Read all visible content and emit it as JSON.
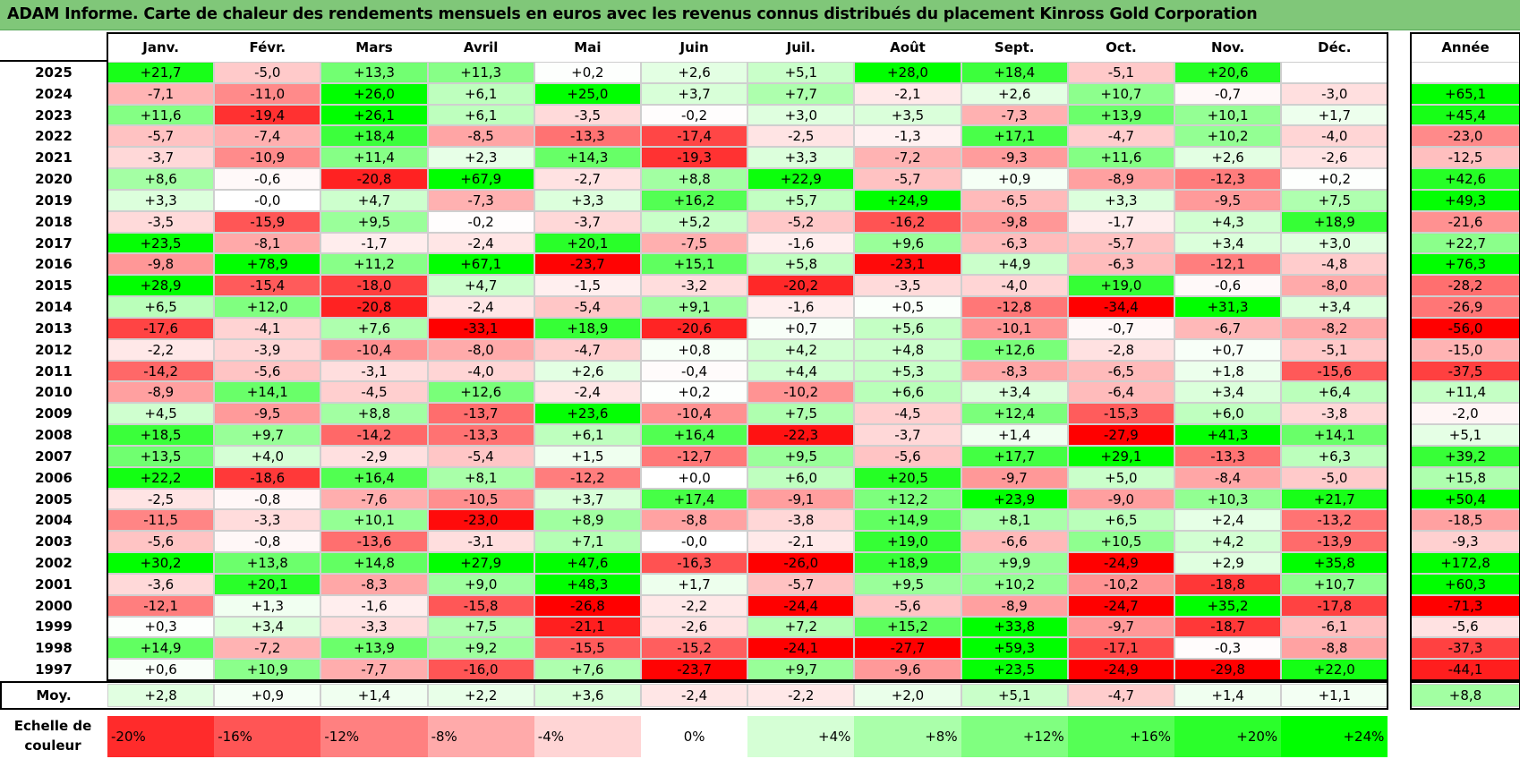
{
  "title": "ADAM Informe. Carte de chaleur des rendements mensuels en euros avec les revenus connus distribués du placement Kinross Gold Corporation",
  "colors": {
    "title_bar": "#80c779",
    "negative": "#ff0000",
    "neutral": "#ffffff",
    "positive": "#00ff00"
  },
  "chart_data": {
    "type": "heatmap",
    "title": "ADAM Informe. Carte de chaleur des rendements mensuels en euros avec les revenus connus distribués du placement Kinross Gold Corporation",
    "months": [
      "Janv.",
      "Févr.",
      "Mars",
      "Avril",
      "Mai",
      "Juin",
      "Juil.",
      "Août",
      "Sept.",
      "Oct.",
      "Nov.",
      "Déc."
    ],
    "year_header": "Année",
    "rows": [
      {
        "year": "2025",
        "values": [
          "+21,7",
          "-5,0",
          "+13,3",
          "+11,3",
          "+0,2",
          "+2,6",
          "+5,1",
          "+28,0",
          "+18,4",
          "-5,1",
          "+20,6",
          ""
        ],
        "annual": ""
      },
      {
        "year": "2024",
        "values": [
          "-7,1",
          "-11,0",
          "+26,0",
          "+6,1",
          "+25,0",
          "+3,7",
          "+7,7",
          "-2,1",
          "+2,6",
          "+10,7",
          "-0,7",
          "-3,0"
        ],
        "annual": "+65,1"
      },
      {
        "year": "2023",
        "values": [
          "+11,6",
          "-19,4",
          "+26,1",
          "+6,1",
          "-3,5",
          "-0,2",
          "+3,0",
          "+3,5",
          "-7,3",
          "+13,9",
          "+10,1",
          "+1,7"
        ],
        "annual": "+45,4"
      },
      {
        "year": "2022",
        "values": [
          "-5,7",
          "-7,4",
          "+18,4",
          "-8,5",
          "-13,3",
          "-17,4",
          "-2,5",
          "-1,3",
          "+17,1",
          "-4,7",
          "+10,2",
          "-4,0"
        ],
        "annual": "-23,0"
      },
      {
        "year": "2021",
        "values": [
          "-3,7",
          "-10,9",
          "+11,4",
          "+2,3",
          "+14,3",
          "-19,3",
          "+3,3",
          "-7,2",
          "-9,3",
          "+11,6",
          "+2,6",
          "-2,6"
        ],
        "annual": "-12,5"
      },
      {
        "year": "2020",
        "values": [
          "+8,6",
          "-0,6",
          "-20,8",
          "+67,9",
          "-2,7",
          "+8,8",
          "+22,9",
          "-5,7",
          "+0,9",
          "-8,9",
          "-12,3",
          "+0,2"
        ],
        "annual": "+42,6"
      },
      {
        "year": "2019",
        "values": [
          "+3,3",
          "-0,0",
          "+4,7",
          "-7,3",
          "+3,3",
          "+16,2",
          "+5,7",
          "+24,9",
          "-6,5",
          "+3,3",
          "-9,5",
          "+7,5"
        ],
        "annual": "+49,3"
      },
      {
        "year": "2018",
        "values": [
          "-3,5",
          "-15,9",
          "+9,5",
          "-0,2",
          "-3,7",
          "+5,2",
          "-5,2",
          "-16,2",
          "-9,8",
          "-1,7",
          "+4,3",
          "+18,9"
        ],
        "annual": "-21,6"
      },
      {
        "year": "2017",
        "values": [
          "+23,5",
          "-8,1",
          "-1,7",
          "-2,4",
          "+20,1",
          "-7,5",
          "-1,6",
          "+9,6",
          "-6,3",
          "-5,7",
          "+3,4",
          "+3,0"
        ],
        "annual": "+22,7"
      },
      {
        "year": "2016",
        "values": [
          "-9,8",
          "+78,9",
          "+11,2",
          "+67,1",
          "-23,7",
          "+15,1",
          "+5,8",
          "-23,1",
          "+4,9",
          "-6,3",
          "-12,1",
          "-4,8"
        ],
        "annual": "+76,3"
      },
      {
        "year": "2015",
        "values": [
          "+28,9",
          "-15,4",
          "-18,0",
          "+4,7",
          "-1,5",
          "-3,2",
          "-20,2",
          "-3,5",
          "-4,0",
          "+19,0",
          "-0,6",
          "-8,0"
        ],
        "annual": "-28,2"
      },
      {
        "year": "2014",
        "values": [
          "+6,5",
          "+12,0",
          "-20,8",
          "-2,4",
          "-5,4",
          "+9,1",
          "-1,6",
          "+0,5",
          "-12,8",
          "-34,4",
          "+31,3",
          "+3,4"
        ],
        "annual": "-26,9"
      },
      {
        "year": "2013",
        "values": [
          "-17,6",
          "-4,1",
          "+7,6",
          "-33,1",
          "+18,9",
          "-20,6",
          "+0,7",
          "+5,6",
          "-10,1",
          "-0,7",
          "-6,7",
          "-8,2"
        ],
        "annual": "-56,0"
      },
      {
        "year": "2012",
        "values": [
          "-2,2",
          "-3,9",
          "-10,4",
          "-8,0",
          "-4,7",
          "+0,8",
          "+4,2",
          "+4,8",
          "+12,6",
          "-2,8",
          "+0,7",
          "-5,1"
        ],
        "annual": "-15,0"
      },
      {
        "year": "2011",
        "values": [
          "-14,2",
          "-5,6",
          "-3,1",
          "-4,0",
          "+2,6",
          "-0,4",
          "+4,4",
          "+5,3",
          "-8,3",
          "-6,5",
          "+1,8",
          "-15,6"
        ],
        "annual": "-37,5"
      },
      {
        "year": "2010",
        "values": [
          "-8,9",
          "+14,1",
          "-4,5",
          "+12,6",
          "-2,4",
          "+0,2",
          "-10,2",
          "+6,6",
          "+3,4",
          "-6,4",
          "+3,4",
          "+6,4"
        ],
        "annual": "+11,4"
      },
      {
        "year": "2009",
        "values": [
          "+4,5",
          "-9,5",
          "+8,8",
          "-13,7",
          "+23,6",
          "-10,4",
          "+7,5",
          "-4,5",
          "+12,4",
          "-15,3",
          "+6,0",
          "-3,8"
        ],
        "annual": "-2,0"
      },
      {
        "year": "2008",
        "values": [
          "+18,5",
          "+9,7",
          "-14,2",
          "-13,3",
          "+6,1",
          "+16,4",
          "-22,3",
          "-3,7",
          "+1,4",
          "-27,9",
          "+41,3",
          "+14,1"
        ],
        "annual": "+5,1"
      },
      {
        "year": "2007",
        "values": [
          "+13,5",
          "+4,0",
          "-2,9",
          "-5,4",
          "+1,5",
          "-12,7",
          "+9,5",
          "-5,6",
          "+17,7",
          "+29,1",
          "-13,3",
          "+6,3"
        ],
        "annual": "+39,2"
      },
      {
        "year": "2006",
        "values": [
          "+22,2",
          "-18,6",
          "+16,4",
          "+8,1",
          "-12,2",
          "+0,0",
          "+6,0",
          "+20,5",
          "-9,7",
          "+5,0",
          "-8,4",
          "-5,0"
        ],
        "annual": "+15,8"
      },
      {
        "year": "2005",
        "values": [
          "-2,5",
          "-0,8",
          "-7,6",
          "-10,5",
          "+3,7",
          "+17,4",
          "-9,1",
          "+12,2",
          "+23,9",
          "-9,0",
          "+10,3",
          "+21,7"
        ],
        "annual": "+50,4"
      },
      {
        "year": "2004",
        "values": [
          "-11,5",
          "-3,3",
          "+10,1",
          "-23,0",
          "+8,9",
          "-8,8",
          "-3,8",
          "+14,9",
          "+8,1",
          "+6,5",
          "+2,4",
          "-13,2"
        ],
        "annual": "-18,5"
      },
      {
        "year": "2003",
        "values": [
          "-5,6",
          "-0,8",
          "-13,6",
          "-3,1",
          "+7,1",
          "-0,0",
          "-2,1",
          "+19,0",
          "-6,6",
          "+10,5",
          "+4,2",
          "-13,9"
        ],
        "annual": "-9,3"
      },
      {
        "year": "2002",
        "values": [
          "+30,2",
          "+13,8",
          "+14,8",
          "+27,9",
          "+47,6",
          "-16,3",
          "-26,0",
          "+18,9",
          "+9,9",
          "-24,9",
          "+2,9",
          "+35,8"
        ],
        "annual": "+172,8"
      },
      {
        "year": "2001",
        "values": [
          "-3,6",
          "+20,1",
          "-8,3",
          "+9,0",
          "+48,3",
          "+1,7",
          "-5,7",
          "+9,5",
          "+10,2",
          "-10,2",
          "-18,8",
          "+10,7"
        ],
        "annual": "+60,3"
      },
      {
        "year": "2000",
        "values": [
          "-12,1",
          "+1,3",
          "-1,6",
          "-15,8",
          "-26,8",
          "-2,2",
          "-24,4",
          "-5,6",
          "-8,9",
          "-24,7",
          "+35,2",
          "-17,8"
        ],
        "annual": "-71,3"
      },
      {
        "year": "1999",
        "values": [
          "+0,3",
          "+3,4",
          "-3,3",
          "+7,5",
          "-21,1",
          "-2,6",
          "+7,2",
          "+15,2",
          "+33,8",
          "-9,7",
          "-18,7",
          "-6,1"
        ],
        "annual": "-5,6"
      },
      {
        "year": "1998",
        "values": [
          "+14,9",
          "-7,2",
          "+13,9",
          "+9,2",
          "-15,5",
          "-15,2",
          "-24,1",
          "-27,7",
          "+59,3",
          "-17,1",
          "-0,3",
          "-8,8"
        ],
        "annual": "-37,3"
      },
      {
        "year": "1997",
        "values": [
          "+0,6",
          "+10,9",
          "-7,7",
          "-16,0",
          "+7,6",
          "-23,7",
          "+9,7",
          "-9,6",
          "+23,5",
          "-24,9",
          "-29,8",
          "+22,0"
        ],
        "annual": "-44,1"
      }
    ],
    "average": {
      "label": "Moy.",
      "values": [
        "+2,8",
        "+0,9",
        "+1,4",
        "+2,2",
        "+3,6",
        "-2,4",
        "-2,2",
        "+2,0",
        "+5,1",
        "-4,7",
        "+1,4",
        "+1,1"
      ],
      "annual": "+8,8"
    },
    "scale": {
      "label": "Echelle de couleur",
      "steps": [
        "-20%",
        "-16%",
        "-12%",
        "-8%",
        "-4%",
        "0%",
        "+4%",
        "+8%",
        "+12%",
        "+16%",
        "+20%",
        "+24%"
      ]
    }
  }
}
